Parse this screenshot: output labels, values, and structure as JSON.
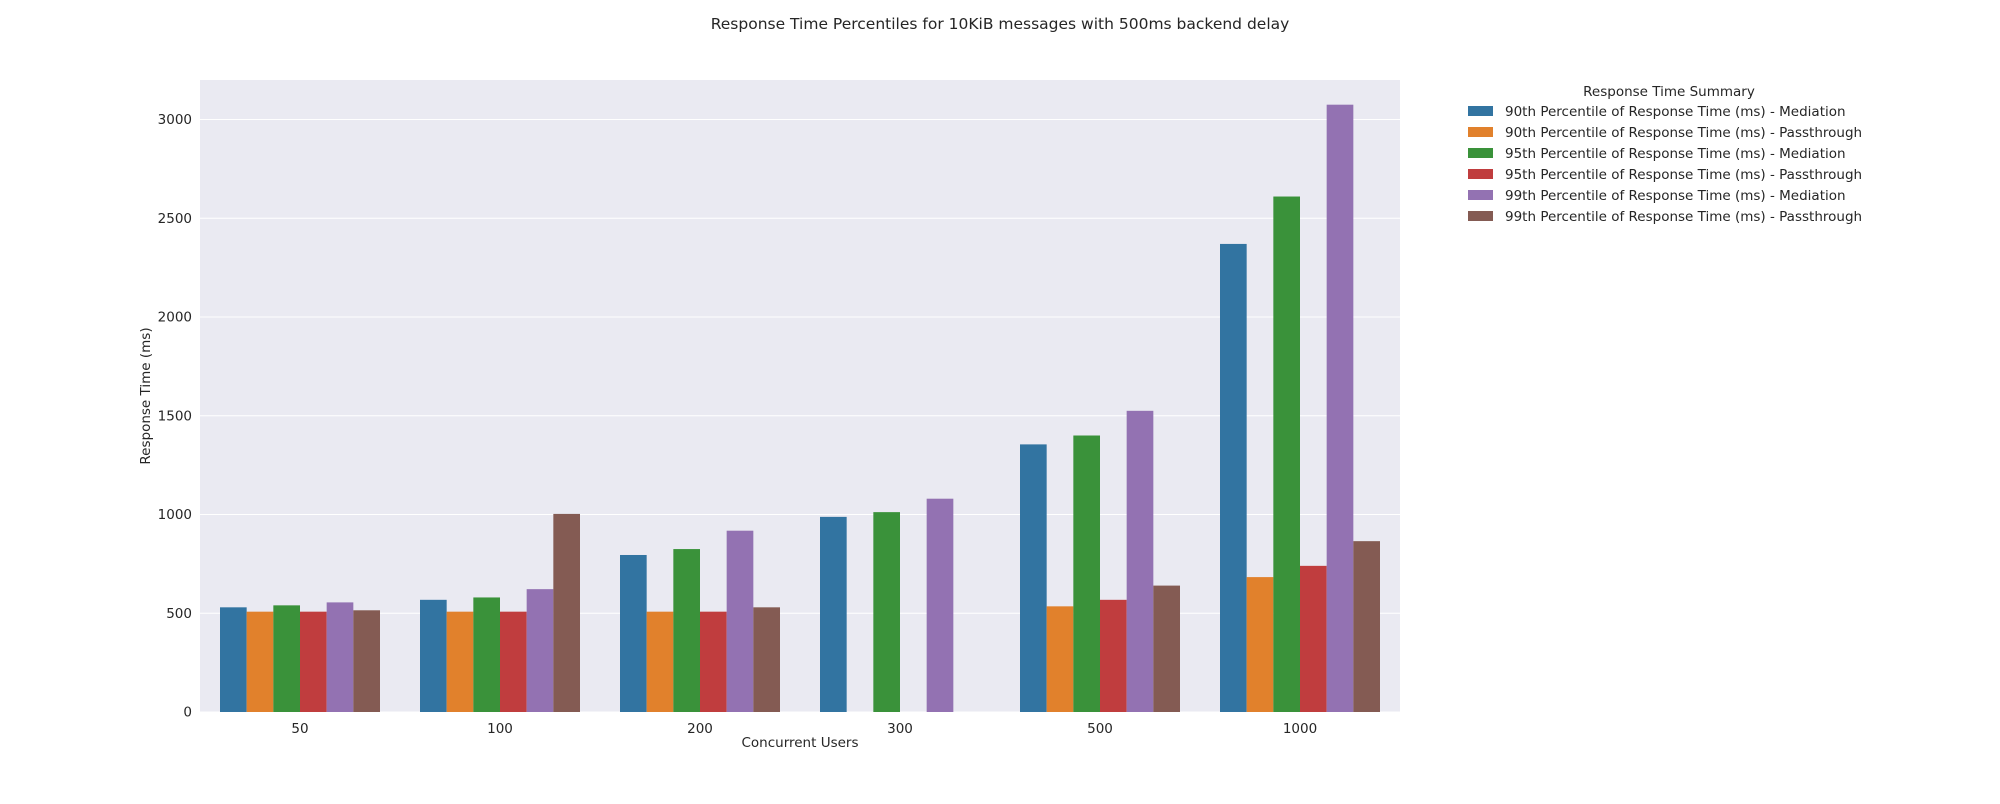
{
  "chart_data": {
    "type": "bar",
    "title": "Response Time Percentiles for 10KiB messages with 500ms backend delay",
    "xlabel": "Concurrent Users",
    "ylabel": "Response Time (ms)",
    "ylim": [
      0,
      3200
    ],
    "yticks": [
      0,
      500,
      1000,
      1500,
      2000,
      2500,
      3000
    ],
    "grid": true,
    "legend_title": "Response Time Summary",
    "legend_position": "outside-right",
    "categories": [
      "50",
      "100",
      "200",
      "300",
      "500",
      "1000"
    ],
    "series": [
      {
        "name": "90th Percentile of Response Time (ms) - Mediation",
        "color": "#3274a1",
        "values": [
          530,
          568,
          795,
          988,
          1355,
          2370
        ]
      },
      {
        "name": "90th Percentile of Response Time (ms) - Passthrough",
        "color": "#e1812c",
        "values": [
          508,
          508,
          508,
          null,
          535,
          683
        ]
      },
      {
        "name": "95th Percentile of Response Time (ms) - Mediation",
        "color": "#3a923a",
        "values": [
          540,
          580,
          825,
          1012,
          1400,
          2610
        ]
      },
      {
        "name": "95th Percentile of Response Time (ms) - Passthrough",
        "color": "#c03d3e",
        "values": [
          508,
          508,
          508,
          null,
          568,
          740
        ]
      },
      {
        "name": "99th Percentile of Response Time (ms) - Mediation",
        "color": "#9372b2",
        "values": [
          555,
          622,
          918,
          1080,
          1525,
          3075
        ]
      },
      {
        "name": "99th Percentile of Response Time (ms) - Passthrough",
        "color": "#845b53",
        "values": [
          515,
          1003,
          530,
          null,
          640,
          865
        ]
      }
    ]
  }
}
